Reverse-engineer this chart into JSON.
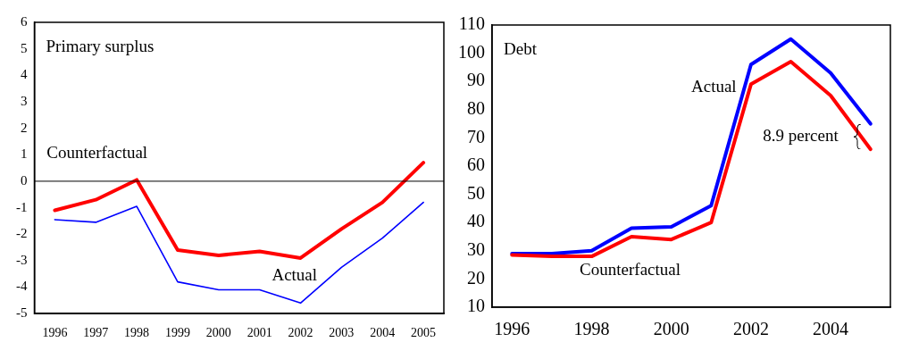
{
  "chart_data": [
    {
      "type": "line",
      "title": "Primary surplus",
      "categories": [
        "1996",
        "1997",
        "1998",
        "1999",
        "2000",
        "2001",
        "2002",
        "2003",
        "2004",
        "2005"
      ],
      "series": [
        {
          "name": "Counterfactual",
          "color": "#ff0000",
          "values": [
            -1.1,
            -0.7,
            0.05,
            -2.6,
            -2.8,
            -2.65,
            -2.9,
            -1.8,
            -0.8,
            0.7
          ]
        },
        {
          "name": "Actual",
          "color": "#0000ff",
          "values": [
            -1.45,
            -1.55,
            -0.95,
            -3.8,
            -4.1,
            -4.1,
            -4.6,
            -3.25,
            -2.15,
            -0.8
          ]
        }
      ],
      "ylim": [
        -5,
        6
      ],
      "yticks": [
        -5,
        -4,
        -3,
        -2,
        -1,
        0,
        1,
        2,
        3,
        4,
        5,
        6
      ],
      "ref_lines": [
        {
          "axis": "y",
          "value": 0,
          "color": "#000000"
        }
      ],
      "grid": false,
      "legend": false,
      "marker": "none",
      "line_style": "solid"
    },
    {
      "type": "line",
      "title": "Debt",
      "categories": [
        "1996",
        null,
        "1998",
        null,
        "2000",
        null,
        "2002",
        null,
        "2004",
        null
      ],
      "series": [
        {
          "name": "Counterfactual",
          "color": "#ff0000",
          "values": [
            28.5,
            28,
            28,
            35,
            34,
            40,
            89,
            97,
            85,
            66
          ]
        },
        {
          "name": "Actual",
          "color": "#0000ff",
          "values": [
            29,
            29,
            30,
            38,
            38.5,
            46,
            96,
            105,
            93,
            75
          ]
        }
      ],
      "ylim": [
        10,
        110
      ],
      "yticks": [
        10,
        20,
        30,
        40,
        50,
        60,
        70,
        80,
        90,
        100,
        110
      ],
      "annotations": [
        "8.9 percent"
      ],
      "grid": false,
      "legend": false,
      "marker": "none",
      "line_style": "solid"
    }
  ]
}
